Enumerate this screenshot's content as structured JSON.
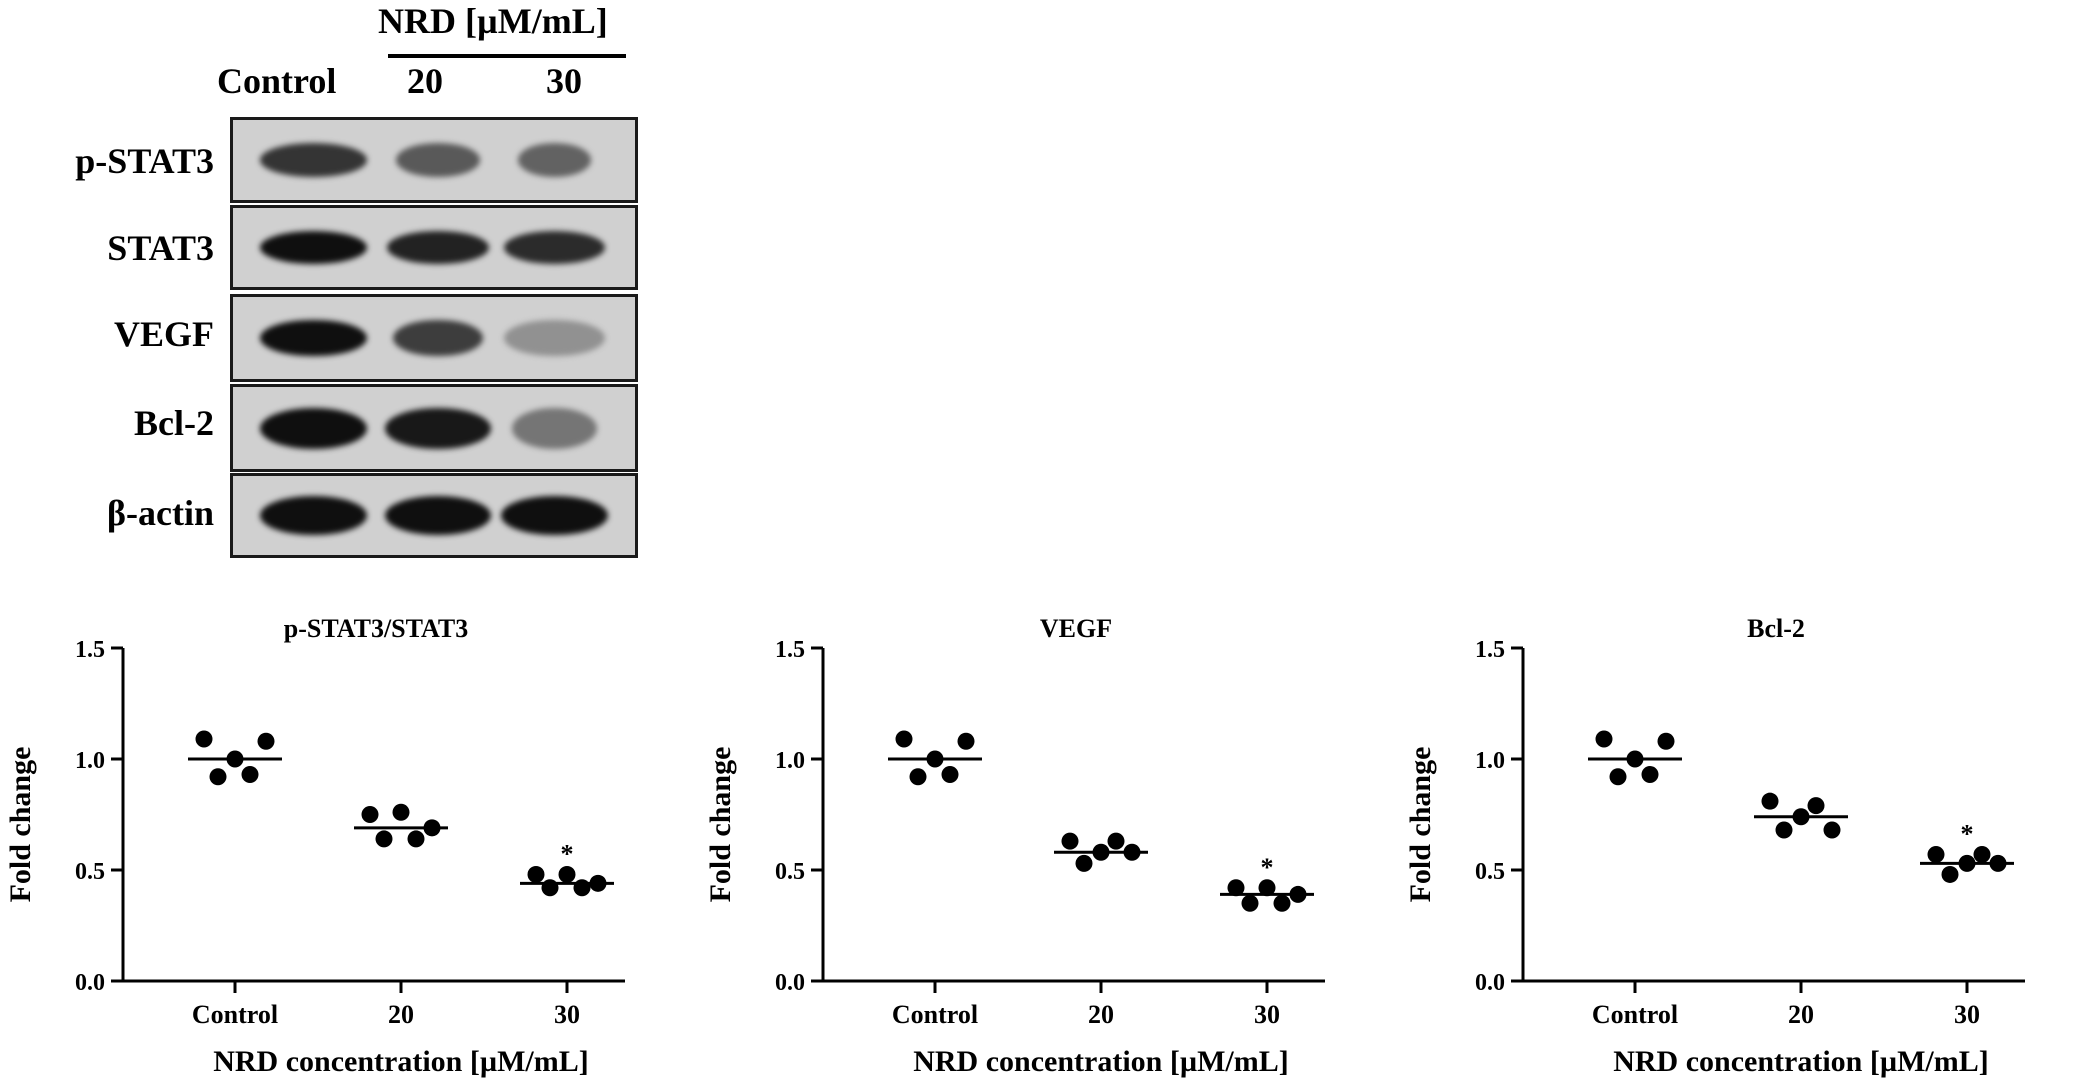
{
  "blot": {
    "treatment_header": "NRD [µM/mL]",
    "lanes": [
      "Control",
      "20",
      "30"
    ],
    "rows": [
      {
        "label": "p-STAT3",
        "intensity": [
          0.8,
          0.6,
          0.55
        ],
        "width": [
          0.95,
          0.75,
          0.65
        ],
        "thickness": 0.42
      },
      {
        "label": "STAT3",
        "intensity": [
          1.0,
          0.9,
          0.85
        ],
        "width": [
          0.95,
          0.9,
          0.9
        ],
        "thickness": 0.42
      },
      {
        "label": "VEGF",
        "intensity": [
          1.0,
          0.75,
          0.3
        ],
        "width": [
          0.95,
          0.8,
          0.9
        ],
        "thickness": 0.45
      },
      {
        "label": "Bcl-2",
        "intensity": [
          1.0,
          0.95,
          0.45
        ],
        "width": [
          0.95,
          0.95,
          0.75
        ],
        "thickness": 0.5
      },
      {
        "label": "β-actin",
        "intensity": [
          1.0,
          1.0,
          1.0
        ],
        "width": [
          0.95,
          0.95,
          0.95
        ],
        "thickness": 0.5
      }
    ]
  },
  "chart_data": [
    {
      "type": "scatter",
      "title": "p-STAT3/STAT3",
      "xlabel": "NRD concentration [µM/mL]",
      "ylabel": "Fold change",
      "categories": [
        "Control",
        "20",
        "30"
      ],
      "ylim": [
        0,
        1.5
      ],
      "yticks": [
        "0.0",
        "0.5",
        "1.0",
        "1.5"
      ],
      "points": [
        [
          1.09,
          0.92,
          1.0,
          0.93,
          1.08
        ],
        [
          0.75,
          0.64,
          0.76,
          0.64,
          0.69
        ],
        [
          0.48,
          0.42,
          0.48,
          0.42,
          0.44
        ]
      ],
      "means": [
        1.0,
        0.69,
        0.44
      ],
      "significance": [
        "",
        "",
        "*"
      ]
    },
    {
      "type": "scatter",
      "title": "VEGF",
      "xlabel": "NRD concentration [µM/mL]",
      "ylabel": "Fold change",
      "categories": [
        "Control",
        "20",
        "30"
      ],
      "ylim": [
        0,
        1.5
      ],
      "yticks": [
        "0.0",
        "0.5",
        "1.0",
        "1.5"
      ],
      "points": [
        [
          1.09,
          0.92,
          1.0,
          0.93,
          1.08
        ],
        [
          0.63,
          0.53,
          0.58,
          0.63,
          0.58
        ],
        [
          0.42,
          0.35,
          0.42,
          0.35,
          0.39
        ]
      ],
      "means": [
        1.0,
        0.58,
        0.39
      ],
      "significance": [
        "",
        "",
        "*"
      ]
    },
    {
      "type": "scatter",
      "title": "Bcl-2",
      "xlabel": "NRD concentration [µM/mL]",
      "ylabel": "Fold change",
      "categories": [
        "Control",
        "20",
        "30"
      ],
      "ylim": [
        0,
        1.5
      ],
      "yticks": [
        "0.0",
        "0.5",
        "1.0",
        "1.5"
      ],
      "points": [
        [
          1.09,
          0.92,
          1.0,
          0.93,
          1.08
        ],
        [
          0.81,
          0.68,
          0.74,
          0.79,
          0.68
        ],
        [
          0.57,
          0.48,
          0.53,
          0.57,
          0.53
        ]
      ],
      "means": [
        1.0,
        0.74,
        0.53
      ],
      "significance": [
        "",
        "",
        "*"
      ]
    }
  ]
}
